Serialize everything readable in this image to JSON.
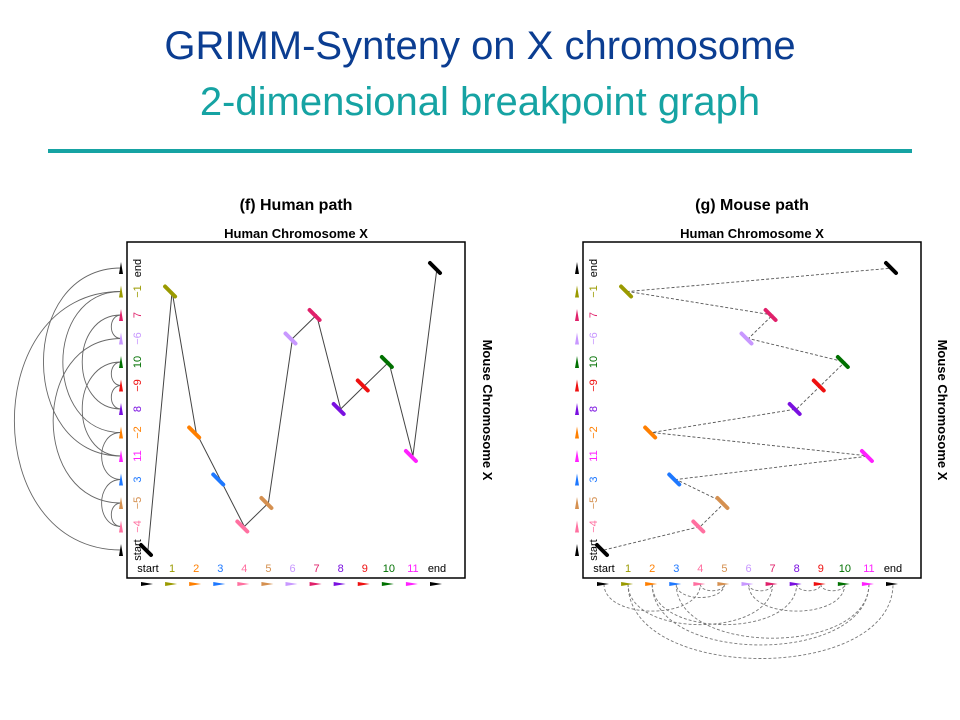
{
  "slide": {
    "title_line1": "GRIMM-Synteny on X chromosome",
    "title_line2": "2-dimensional breakpoint graph"
  },
  "colors": {
    "title_blue": "#0b3d91",
    "title_teal": "#16a3a3"
  },
  "blocks": [
    {
      "label": "start",
      "signed_label": "start",
      "color": "#000000"
    },
    {
      "label": "1",
      "signed_label": "−1",
      "color": "#9a9a00"
    },
    {
      "label": "2",
      "signed_label": "−2",
      "color": "#ff7f00"
    },
    {
      "label": "3",
      "signed_label": "3",
      "color": "#1e78ff"
    },
    {
      "label": "4",
      "signed_label": "−4",
      "color": "#ff70a0"
    },
    {
      "label": "5",
      "signed_label": "−5",
      "color": "#d59050"
    },
    {
      "label": "6",
      "signed_label": "−6",
      "color": "#c898ff"
    },
    {
      "label": "7",
      "signed_label": "7",
      "color": "#e0206a"
    },
    {
      "label": "8",
      "signed_label": "8",
      "color": "#7a10e0"
    },
    {
      "label": "9",
      "signed_label": "−9",
      "color": "#ee1010"
    },
    {
      "label": "10",
      "signed_label": "10",
      "color": "#007000"
    },
    {
      "label": "11",
      "signed_label": "11",
      "color": "#ff20ff"
    },
    {
      "label": "end",
      "signed_label": "end",
      "color": "#000000"
    }
  ],
  "panels": [
    {
      "id": "f",
      "title": "(f) Human path",
      "x_axis_label": "Human Chromosome X",
      "y_axis_label": "Mouse Chromosome X",
      "path_style": "solid",
      "path": [
        [
          0,
          0
        ],
        [
          1,
          11
        ],
        [
          2,
          5
        ],
        [
          3,
          3
        ],
        [
          4,
          1
        ],
        [
          5,
          2
        ],
        [
          6,
          9
        ],
        [
          7,
          10
        ],
        [
          8,
          6
        ],
        [
          9,
          7
        ],
        [
          10,
          8
        ],
        [
          11,
          4
        ],
        [
          12,
          12
        ]
      ]
    },
    {
      "id": "g",
      "title": "(g) Mouse path",
      "x_axis_label": "Human Chromosome X",
      "y_axis_label": "Mouse Chromosome X",
      "path_style": "dashed",
      "path": [
        [
          0,
          0
        ],
        [
          4,
          1
        ],
        [
          5,
          2
        ],
        [
          3,
          3
        ],
        [
          11,
          4
        ],
        [
          2,
          5
        ],
        [
          8,
          6
        ],
        [
          9,
          7
        ],
        [
          10,
          8
        ],
        [
          6,
          9
        ],
        [
          7,
          10
        ],
        [
          1,
          11
        ],
        [
          12,
          12
        ]
      ]
    }
  ],
  "mouse_order_left_axis": [
    0,
    4,
    5,
    3,
    11,
    2,
    8,
    9,
    10,
    6,
    7,
    1,
    12
  ]
}
